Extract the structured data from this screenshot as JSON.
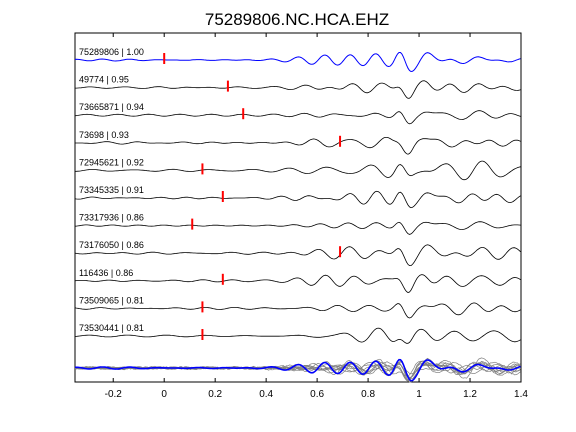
{
  "chart_data": {
    "type": "line",
    "title": "75289806.NC.HCA.EHZ",
    "xlabel": "",
    "ylabel": "",
    "xlim": [
      -0.35,
      1.4
    ],
    "x_ticks": [
      -0.2,
      0,
      0.2,
      0.4,
      0.6,
      0.8,
      1,
      1.2,
      1.4
    ],
    "x_tick_labels": [
      "-0.2",
      "0",
      "0.2",
      "0.4",
      "0.6",
      "0.8",
      "1",
      "1.2",
      "1.4"
    ],
    "y_ticks_shown": false,
    "grid": false,
    "reference_color": "#0000ff",
    "trace_color": "#000000",
    "pick_color": "#ff0000",
    "stack_color": "#808080",
    "traces": [
      {
        "label": "75289806 | 1.00",
        "pick_time": 0.0,
        "reference": true
      },
      {
        "label": "49774 | 0.95",
        "pick_time": 0.25
      },
      {
        "label": "73665871 | 0.94",
        "pick_time": 0.31
      },
      {
        "label": "73698 | 0.93",
        "pick_time": 0.69
      },
      {
        "label": "72945621 | 0.92",
        "pick_time": 0.15
      },
      {
        "label": "73345335 | 0.91",
        "pick_time": 0.23
      },
      {
        "label": "73317936 | 0.86",
        "pick_time": 0.11
      },
      {
        "label": "73176050 | 0.86",
        "pick_time": 0.69
      },
      {
        "label": "116436 | 0.86",
        "pick_time": 0.23
      },
      {
        "label": "73509065 | 0.81",
        "pick_time": 0.15
      },
      {
        "label": "73530441 | 0.81",
        "pick_time": 0.15
      }
    ],
    "stack_panel": "overlay of all traces, reference in blue"
  }
}
